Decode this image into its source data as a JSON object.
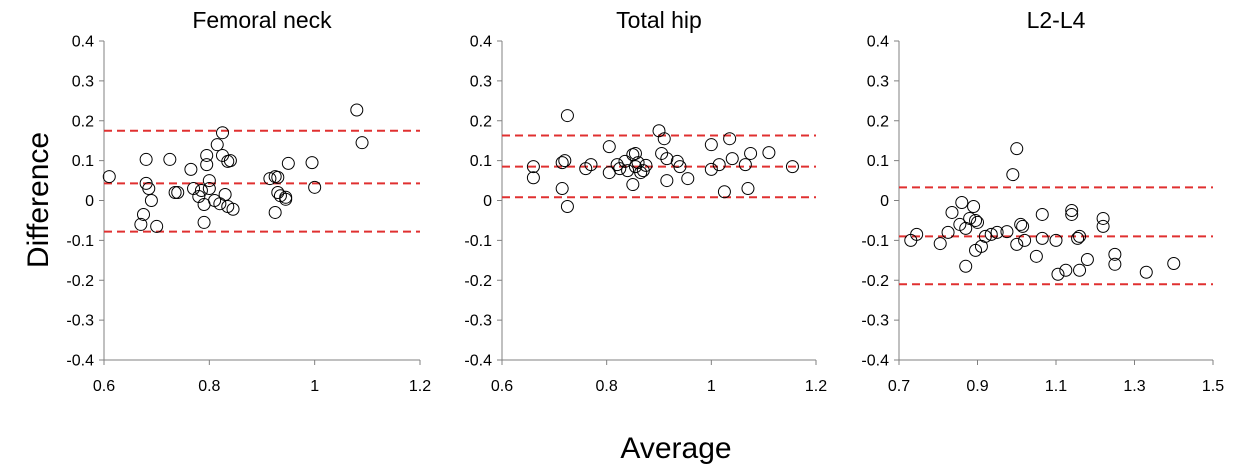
{
  "figure": {
    "ylabel": "Difference",
    "xlabel": "Average"
  },
  "chart_data": [
    {
      "type": "scatter",
      "title": "Femoral neck",
      "xlim": [
        0.6,
        1.2
      ],
      "ylim": [
        -0.4,
        0.4
      ],
      "xticks": [
        "0.6",
        "0.8",
        "1",
        "1.2"
      ],
      "yticks": [
        "0.4",
        "0.3",
        "0.2",
        "0.1",
        "0",
        "-0.1",
        "-0.2",
        "-0.3",
        "-0.4"
      ],
      "grid": false,
      "ref_lines": [
        0.175,
        0.043,
        -0.078
      ],
      "ref_line_color": "#e03030",
      "marker_color": "#000000",
      "points": [
        [
          0.61,
          0.06
        ],
        [
          0.67,
          -0.06
        ],
        [
          0.675,
          -0.035
        ],
        [
          0.68,
          0.103
        ],
        [
          0.68,
          0.043
        ],
        [
          0.685,
          0.03
        ],
        [
          0.69,
          0.0
        ],
        [
          0.7,
          -0.065
        ],
        [
          0.725,
          0.103
        ],
        [
          0.735,
          0.02
        ],
        [
          0.74,
          0.02
        ],
        [
          0.765,
          0.078
        ],
        [
          0.77,
          0.03
        ],
        [
          0.78,
          0.01
        ],
        [
          0.785,
          0.025
        ],
        [
          0.79,
          -0.055
        ],
        [
          0.79,
          -0.01
        ],
        [
          0.795,
          0.09
        ],
        [
          0.795,
          0.113
        ],
        [
          0.8,
          0.05
        ],
        [
          0.8,
          0.03
        ],
        [
          0.81,
          0.0
        ],
        [
          0.815,
          0.14
        ],
        [
          0.82,
          -0.008
        ],
        [
          0.825,
          0.17
        ],
        [
          0.825,
          0.113
        ],
        [
          0.83,
          0.015
        ],
        [
          0.835,
          0.098
        ],
        [
          0.835,
          -0.015
        ],
        [
          0.84,
          0.1
        ],
        [
          0.845,
          -0.022
        ],
        [
          0.915,
          0.055
        ],
        [
          0.925,
          0.06
        ],
        [
          0.93,
          0.058
        ],
        [
          0.925,
          -0.03
        ],
        [
          0.93,
          0.02
        ],
        [
          0.935,
          0.012
        ],
        [
          0.945,
          0.003
        ],
        [
          0.945,
          0.008
        ],
        [
          0.95,
          0.093
        ],
        [
          0.995,
          0.095
        ],
        [
          1.0,
          0.033
        ],
        [
          1.08,
          0.227
        ],
        [
          1.09,
          0.145
        ]
      ]
    },
    {
      "type": "scatter",
      "title": "Total hip",
      "xlim": [
        0.6,
        1.2
      ],
      "ylim": [
        -0.4,
        0.4
      ],
      "xticks": [
        "0.6",
        "0.8",
        "1",
        "1.2"
      ],
      "yticks": [
        "0.4",
        "0.3",
        "0.2",
        "0.1",
        "0",
        "-0.1",
        "-0.2",
        "-0.3",
        "-0.4"
      ],
      "grid": false,
      "ref_lines": [
        0.163,
        0.085,
        0.008
      ],
      "ref_line_color": "#e03030",
      "marker_color": "#000000",
      "points": [
        [
          0.66,
          0.057
        ],
        [
          0.66,
          0.085
        ],
        [
          0.715,
          0.03
        ],
        [
          0.715,
          0.095
        ],
        [
          0.72,
          0.1
        ],
        [
          0.725,
          0.213
        ],
        [
          0.725,
          -0.015
        ],
        [
          0.76,
          0.08
        ],
        [
          0.77,
          0.09
        ],
        [
          0.805,
          0.135
        ],
        [
          0.805,
          0.07
        ],
        [
          0.82,
          0.09
        ],
        [
          0.825,
          0.08
        ],
        [
          0.835,
          0.098
        ],
        [
          0.84,
          0.075
        ],
        [
          0.85,
          0.04
        ],
        [
          0.85,
          0.115
        ],
        [
          0.855,
          0.118
        ],
        [
          0.855,
          0.085
        ],
        [
          0.86,
          0.095
        ],
        [
          0.865,
          0.07
        ],
        [
          0.87,
          0.075
        ],
        [
          0.875,
          0.088
        ],
        [
          0.9,
          0.175
        ],
        [
          0.905,
          0.118
        ],
        [
          0.91,
          0.155
        ],
        [
          0.915,
          0.105
        ],
        [
          0.915,
          0.05
        ],
        [
          0.935,
          0.098
        ],
        [
          0.94,
          0.085
        ],
        [
          0.955,
          0.055
        ],
        [
          1.0,
          0.14
        ],
        [
          1.0,
          0.078
        ],
        [
          1.015,
          0.09
        ],
        [
          1.025,
          0.022
        ],
        [
          1.035,
          0.155
        ],
        [
          1.04,
          0.105
        ],
        [
          1.065,
          0.09
        ],
        [
          1.07,
          0.03
        ],
        [
          1.075,
          0.118
        ],
        [
          1.11,
          0.12
        ],
        [
          1.155,
          0.085
        ]
      ]
    },
    {
      "type": "scatter",
      "title": "L2-L4",
      "xlim": [
        0.7,
        1.5
      ],
      "ylim": [
        -0.4,
        0.4
      ],
      "xticks": [
        "0.7",
        "0.9",
        "1.1",
        "1.3",
        "1.5"
      ],
      "yticks": [
        "0.4",
        "0.3",
        "0.2",
        "0.1",
        "0",
        "-0.1",
        "-0.2",
        "-0.3",
        "-0.4"
      ],
      "grid": false,
      "ref_lines": [
        0.033,
        -0.09,
        -0.21
      ],
      "ref_line_color": "#e03030",
      "marker_color": "#000000",
      "points": [
        [
          0.73,
          -0.1
        ],
        [
          0.745,
          -0.085
        ],
        [
          0.805,
          -0.108
        ],
        [
          0.825,
          -0.08
        ],
        [
          0.835,
          -0.03
        ],
        [
          0.855,
          -0.06
        ],
        [
          0.86,
          -0.005
        ],
        [
          0.87,
          -0.165
        ],
        [
          0.87,
          -0.07
        ],
        [
          0.88,
          -0.045
        ],
        [
          0.89,
          -0.015
        ],
        [
          0.895,
          -0.125
        ],
        [
          0.895,
          -0.05
        ],
        [
          0.9,
          -0.055
        ],
        [
          0.91,
          -0.115
        ],
        [
          0.92,
          -0.09
        ],
        [
          0.935,
          -0.085
        ],
        [
          0.95,
          -0.08
        ],
        [
          0.975,
          -0.078
        ],
        [
          0.99,
          0.065
        ],
        [
          1.0,
          0.13
        ],
        [
          1.0,
          -0.11
        ],
        [
          1.01,
          -0.06
        ],
        [
          1.015,
          -0.065
        ],
        [
          1.02,
          -0.1
        ],
        [
          1.05,
          -0.14
        ],
        [
          1.065,
          -0.035
        ],
        [
          1.065,
          -0.095
        ],
        [
          1.1,
          -0.1
        ],
        [
          1.105,
          -0.185
        ],
        [
          1.125,
          -0.175
        ],
        [
          1.14,
          -0.025
        ],
        [
          1.14,
          -0.035
        ],
        [
          1.155,
          -0.095
        ],
        [
          1.16,
          -0.09
        ],
        [
          1.16,
          -0.175
        ],
        [
          1.18,
          -0.148
        ],
        [
          1.22,
          -0.045
        ],
        [
          1.22,
          -0.065
        ],
        [
          1.25,
          -0.135
        ],
        [
          1.25,
          -0.16
        ],
        [
          1.33,
          -0.18
        ],
        [
          1.4,
          -0.158
        ]
      ]
    }
  ]
}
